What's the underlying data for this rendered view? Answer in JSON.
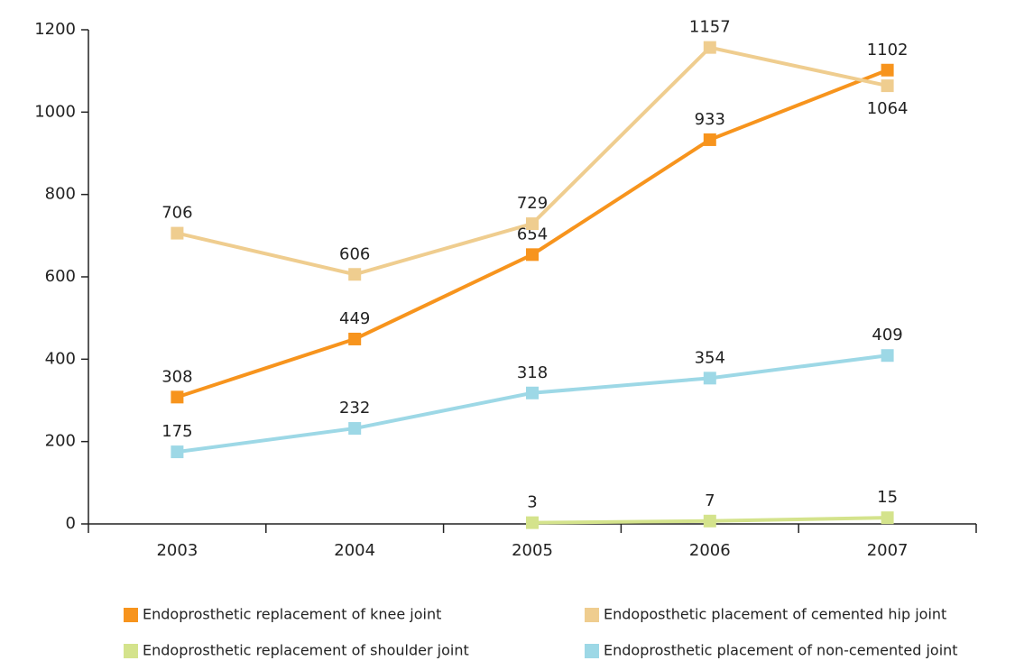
{
  "chart_data": {
    "type": "line",
    "categories": [
      "2003",
      "2004",
      "2005",
      "2006",
      "2007"
    ],
    "series": [
      {
        "name": "Endoprosthetic replacement of knee joint",
        "color": "#f7941d",
        "values": [
          308,
          449,
          654,
          933,
          1102
        ]
      },
      {
        "name": "Endoposthetic placement of cemented hip joint",
        "color": "#efcd8f",
        "values": [
          706,
          606,
          729,
          1157,
          1064
        ]
      },
      {
        "name": "Endoprosthetic replacement of shoulder  joint",
        "color": "#d4e38c",
        "values": [
          null,
          null,
          3,
          7,
          15
        ]
      },
      {
        "name": "Endoprosthetic placement of non-cemented  joint",
        "color": "#9dd8e6",
        "values": [
          175,
          232,
          318,
          354,
          409
        ]
      }
    ],
    "ylim": [
      0,
      1200
    ],
    "yticks": [
      0,
      200,
      400,
      600,
      800,
      1000,
      1200
    ]
  }
}
